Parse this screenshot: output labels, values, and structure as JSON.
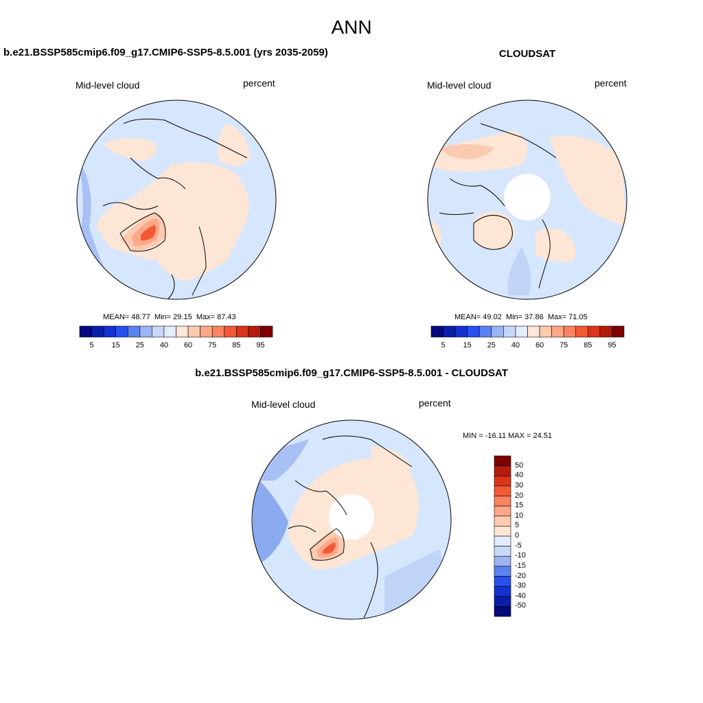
{
  "figure": {
    "title": "ANN"
  },
  "panels": {
    "model": {
      "title": "b.e21.BSSP585cmip6.f09_g17.CMIP6-SSP5-8.5.001 (yrs 2035-2059)",
      "left_label": "Mid-level cloud",
      "right_label": "percent",
      "stats": {
        "mean_label": "MEAN=",
        "mean": "48.77",
        "min_label": "Min=",
        "min": "29.15",
        "max_label": "Max=",
        "max": "87.43"
      }
    },
    "obs": {
      "title": "CLOUDSAT",
      "left_label": "Mid-level cloud",
      "right_label": "percent",
      "stats": {
        "mean_label": "MEAN=",
        "mean": "49.02",
        "min_label": "Min=",
        "min": "37.86",
        "max_label": "Max=",
        "max": "71.05"
      }
    },
    "diff": {
      "title": "b.e21.BSSP585cmip6.f09_g17.CMIP6-SSP5-8.5.001 - CLOUDSAT",
      "left_label": "Mid-level cloud",
      "right_label": "percent",
      "stats_text": "MIN = -16.11 MAX =  24.51"
    }
  },
  "colorbar_main": {
    "tick_labels": [
      "5",
      "15",
      "25",
      "40",
      "60",
      "75",
      "85",
      "95"
    ],
    "colors": [
      "#06097a",
      "#0a1ea8",
      "#1432d0",
      "#2850f0",
      "#5a82f0",
      "#9cb4f4",
      "#c8d8f8",
      "#e2ecfc",
      "#fde6d6",
      "#fccab0",
      "#fca888",
      "#fa8460",
      "#f35a34",
      "#dc3418",
      "#b41c0c",
      "#800000"
    ]
  },
  "colorbar_diff": {
    "tick_labels": [
      "50",
      "40",
      "30",
      "20",
      "15",
      "10",
      "5",
      "0",
      "-5",
      "-10",
      "-15",
      "-20",
      "-30",
      "-40",
      "-50"
    ],
    "colors": [
      "#800000",
      "#b41c0c",
      "#dc3418",
      "#f35a34",
      "#fa8460",
      "#fca888",
      "#fccab0",
      "#fde6d6",
      "#e2ecfc",
      "#c8d8f8",
      "#9cb4f4",
      "#5a82f0",
      "#2850f0",
      "#1432d0",
      "#0a1ea8",
      "#06097a"
    ]
  },
  "map_colors": {
    "ocean_blue": "#d6e6fc",
    "light_blue": "#c0d4f8",
    "mid_blue": "#a8c0f4",
    "deep_blue": "#8caaf0",
    "pale_orange": "#fde6d6",
    "light_orange": "#fccab0",
    "orange": "#fca888",
    "red_orange": "#f35a34",
    "missing": "#ffffff"
  }
}
